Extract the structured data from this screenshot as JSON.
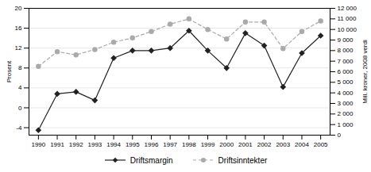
{
  "chart_data": {
    "type": "line",
    "x": [
      1990,
      1991,
      1992,
      1993,
      1994,
      1995,
      1996,
      1997,
      1998,
      1999,
      2000,
      2001,
      2002,
      2003,
      2004,
      2005
    ],
    "xlim": [
      1989.5,
      2005.5
    ],
    "xticks": [
      1990,
      1991,
      1992,
      1993,
      1994,
      1995,
      1996,
      1997,
      1998,
      1999,
      2000,
      2001,
      2002,
      2003,
      2004,
      2005
    ],
    "ylim": [
      -5.5,
      20
    ],
    "yticks": [
      -4,
      0,
      4,
      8,
      12,
      16,
      20
    ],
    "ylabel": "Prosent",
    "y2lim": [
      0,
      12000
    ],
    "y2ticks": [
      0,
      {
        "value": 1000,
        "label": "1 000"
      },
      {
        "value": 2000,
        "label": "2 000"
      },
      {
        "value": 3000,
        "label": "3 000"
      },
      {
        "value": 4000,
        "label": "4 000"
      },
      {
        "value": 5000,
        "label": "5 000"
      },
      {
        "value": 6000,
        "label": "6 000"
      },
      {
        "value": 7000,
        "label": "7 000"
      },
      {
        "value": 8000,
        "label": "8 000"
      },
      {
        "value": 9000,
        "label": "9 000"
      },
      {
        "value": 10000,
        "label": "10 000"
      },
      {
        "value": 11000,
        "label": "11 000"
      },
      {
        "value": 12000,
        "label": "12 000"
      }
    ],
    "y2label": "Mill. kroner, 2008 verdi",
    "grid": true,
    "legend": "bottom",
    "series": [
      {
        "name": "Driftsmargin",
        "color": "#222222",
        "marker": "diamond",
        "line_style": "solid",
        "values": [
          -4.5,
          2.8,
          3.2,
          1.5,
          10.0,
          11.5,
          11.5,
          12.0,
          15.5,
          11.5,
          8.0,
          15.0,
          12.5,
          4.2,
          11.0,
          14.5
        ]
      },
      {
        "name": "Driftsinntekter",
        "color": "#aaaaaa",
        "marker": "circle",
        "line_style": "dashed",
        "axis": "y2",
        "values": [
          6500,
          7900,
          7600,
          8100,
          8800,
          9200,
          9800,
          10500,
          11000,
          10000,
          9100,
          10700,
          10700,
          8200,
          9800,
          10800
        ]
      }
    ]
  }
}
